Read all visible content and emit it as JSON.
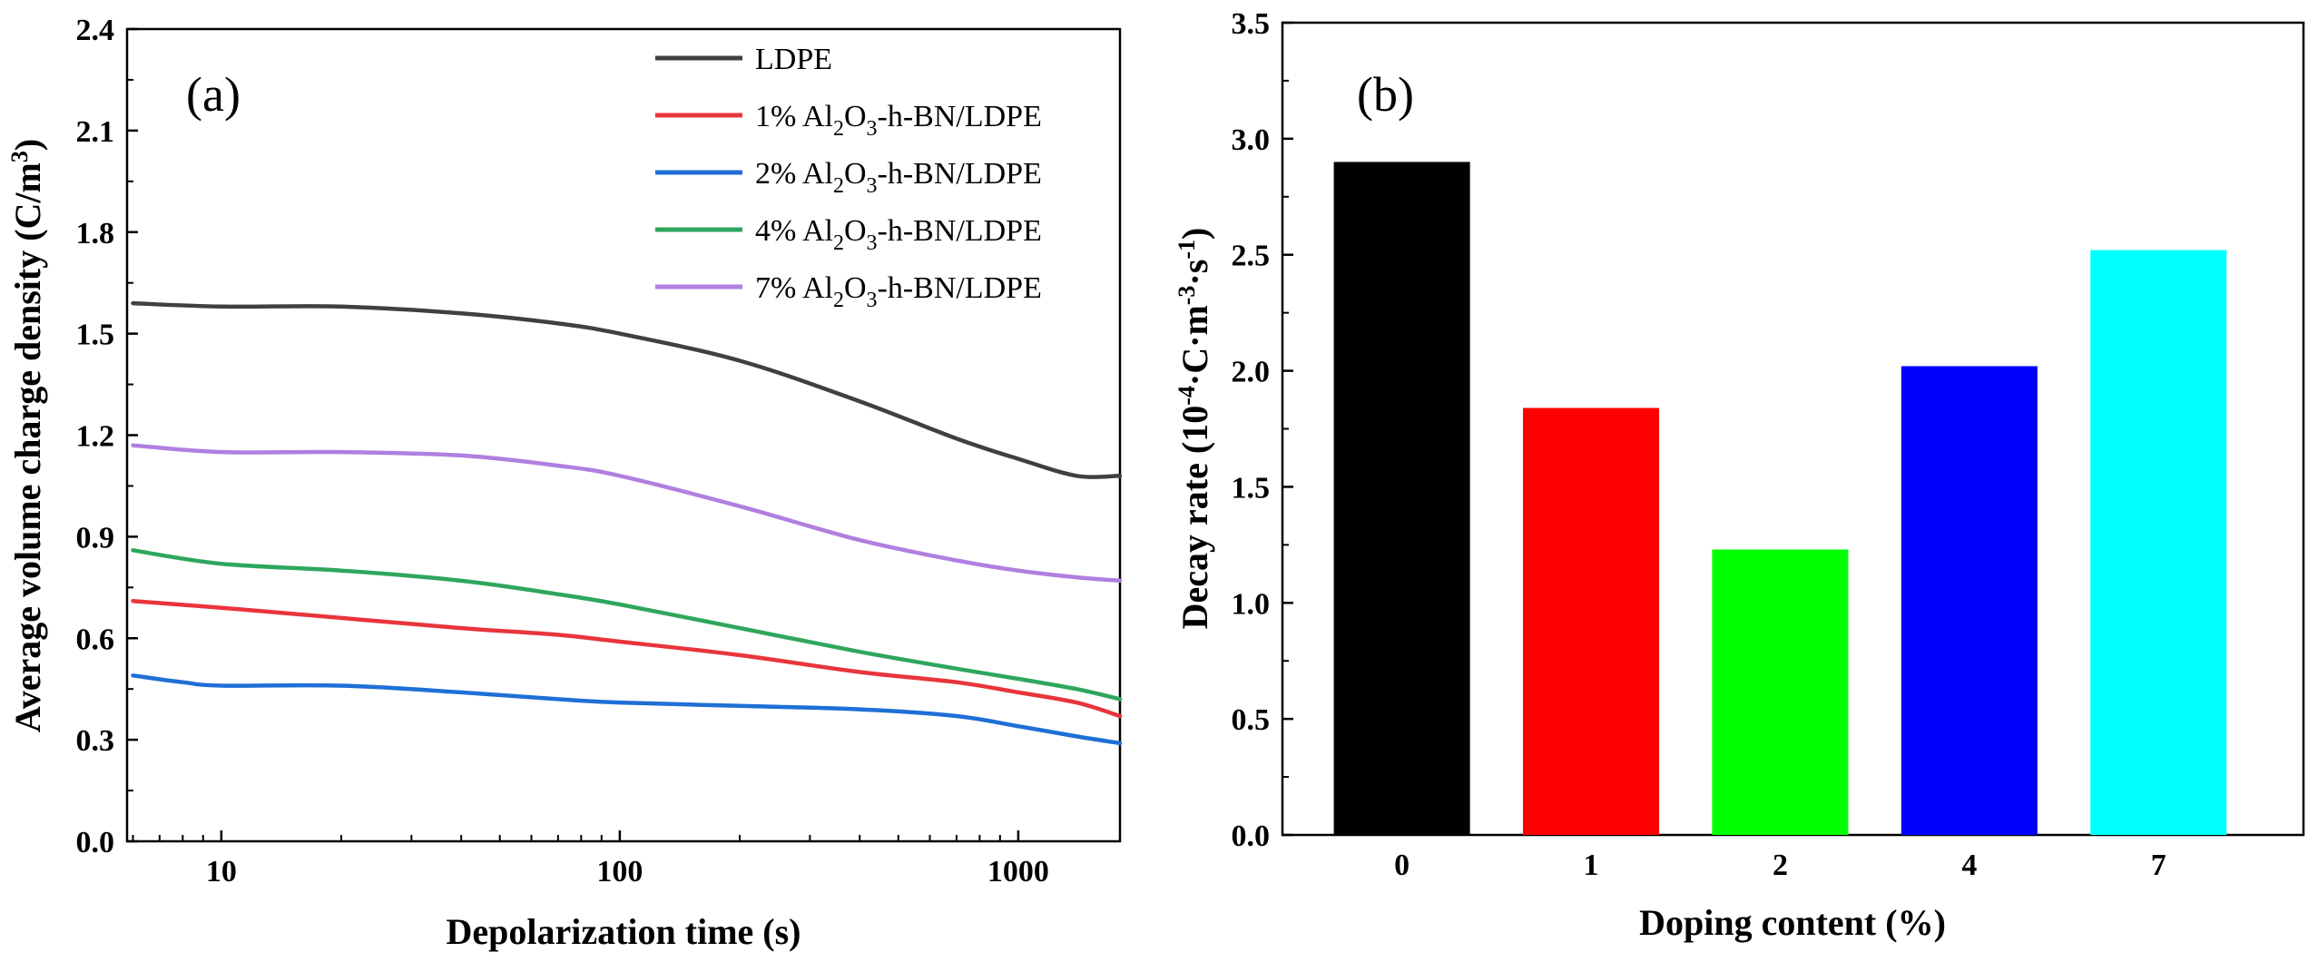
{
  "chart_data": [
    {
      "type": "line",
      "panel_label": "(a)",
      "xlabel": "Depolarization time (s)",
      "ylabel": "Average volume charge density (C/m3)",
      "ylabel_parts": {
        "main": "Average volume charge density (C/m",
        "sup": "3",
        "end": ")"
      },
      "xscale": "log",
      "xlim": [
        5.8,
        1800
      ],
      "ylim": [
        0.0,
        2.4
      ],
      "xticks": [
        "10",
        "100",
        "1000"
      ],
      "yticks": [
        "0.0",
        "0.3",
        "0.6",
        "0.9",
        "1.2",
        "1.5",
        "1.8",
        "2.1",
        "2.4"
      ],
      "legend_position": "top-right",
      "series": [
        {
          "name": "LDPE",
          "legend": {
            "pre": "LDPE",
            "sub": "",
            "post": ""
          },
          "color": "#404040",
          "x": [
            6,
            10,
            20,
            40,
            70,
            100,
            200,
            400,
            700,
            1000,
            1400,
            1800
          ],
          "y": [
            1.59,
            1.58,
            1.58,
            1.56,
            1.53,
            1.5,
            1.42,
            1.3,
            1.19,
            1.13,
            1.08,
            1.08
          ]
        },
        {
          "name": "1% Al2O3-h-BN/LDPE",
          "legend": {
            "pre": "1% Al",
            "sub": "2",
            "mid": "O",
            "sub2": "3",
            "post": "-h-BN/LDPE"
          },
          "color": "#e8353b",
          "x": [
            6,
            10,
            20,
            40,
            70,
            100,
            200,
            400,
            700,
            1000,
            1400,
            1800
          ],
          "y": [
            0.71,
            0.69,
            0.66,
            0.63,
            0.61,
            0.59,
            0.55,
            0.5,
            0.47,
            0.44,
            0.41,
            0.37
          ]
        },
        {
          "name": "2% Al2O3-h-BN/LDPE",
          "legend": {
            "pre": "2% Al",
            "sub": "2",
            "mid": "O",
            "sub2": "3",
            "post": "-h-BN/LDPE"
          },
          "color": "#1f6fd6",
          "x": [
            6,
            8,
            10,
            20,
            40,
            70,
            100,
            200,
            400,
            700,
            1000,
            1400,
            1800
          ],
          "y": [
            0.49,
            0.47,
            0.46,
            0.46,
            0.44,
            0.42,
            0.41,
            0.4,
            0.39,
            0.37,
            0.34,
            0.31,
            0.29
          ]
        },
        {
          "name": "4% Al2O3-h-BN/LDPE",
          "legend": {
            "pre": "4% Al",
            "sub": "2",
            "mid": "O",
            "sub2": "3",
            "post": "-h-BN/LDPE"
          },
          "color": "#2fa65d",
          "x": [
            6,
            10,
            20,
            40,
            70,
            100,
            200,
            400,
            700,
            1000,
            1400,
            1800
          ],
          "y": [
            0.86,
            0.82,
            0.8,
            0.77,
            0.73,
            0.7,
            0.63,
            0.56,
            0.51,
            0.48,
            0.45,
            0.42
          ]
        },
        {
          "name": "7% Al2O3-h-BN/LDPE",
          "legend": {
            "pre": "7% Al",
            "sub": "2",
            "mid": "O",
            "sub2": "3",
            "post": "-h-BN/LDPE"
          },
          "color": "#b07fe0",
          "x": [
            6,
            10,
            20,
            40,
            70,
            100,
            200,
            400,
            700,
            1000,
            1400,
            1800
          ],
          "y": [
            1.17,
            1.15,
            1.15,
            1.14,
            1.11,
            1.08,
            0.99,
            0.89,
            0.83,
            0.8,
            0.78,
            0.77
          ]
        }
      ]
    },
    {
      "type": "bar",
      "panel_label": "(b)",
      "xlabel": "Doping content (%)",
      "ylabel": "Decay rate (10^-4·C·m^-3·s^-1)",
      "ylabel_parts": {
        "a": "Decay rate (10",
        "s1": "-4",
        "b": "·C·m",
        "s2": "-3",
        "c": "·s",
        "s3": "-1",
        "d": ")"
      },
      "ylim": [
        0.0,
        3.5
      ],
      "yticks": [
        "0.0",
        "0.5",
        "1.0",
        "1.5",
        "2.0",
        "2.5",
        "3.0",
        "3.5"
      ],
      "categories": [
        "0",
        "1",
        "2",
        "4",
        "7"
      ],
      "values": [
        2.9,
        1.84,
        1.23,
        2.02,
        2.52
      ],
      "colors": [
        "#000000",
        "#ff0000",
        "#00ff00",
        "#0000ff",
        "#00ffff"
      ]
    }
  ]
}
